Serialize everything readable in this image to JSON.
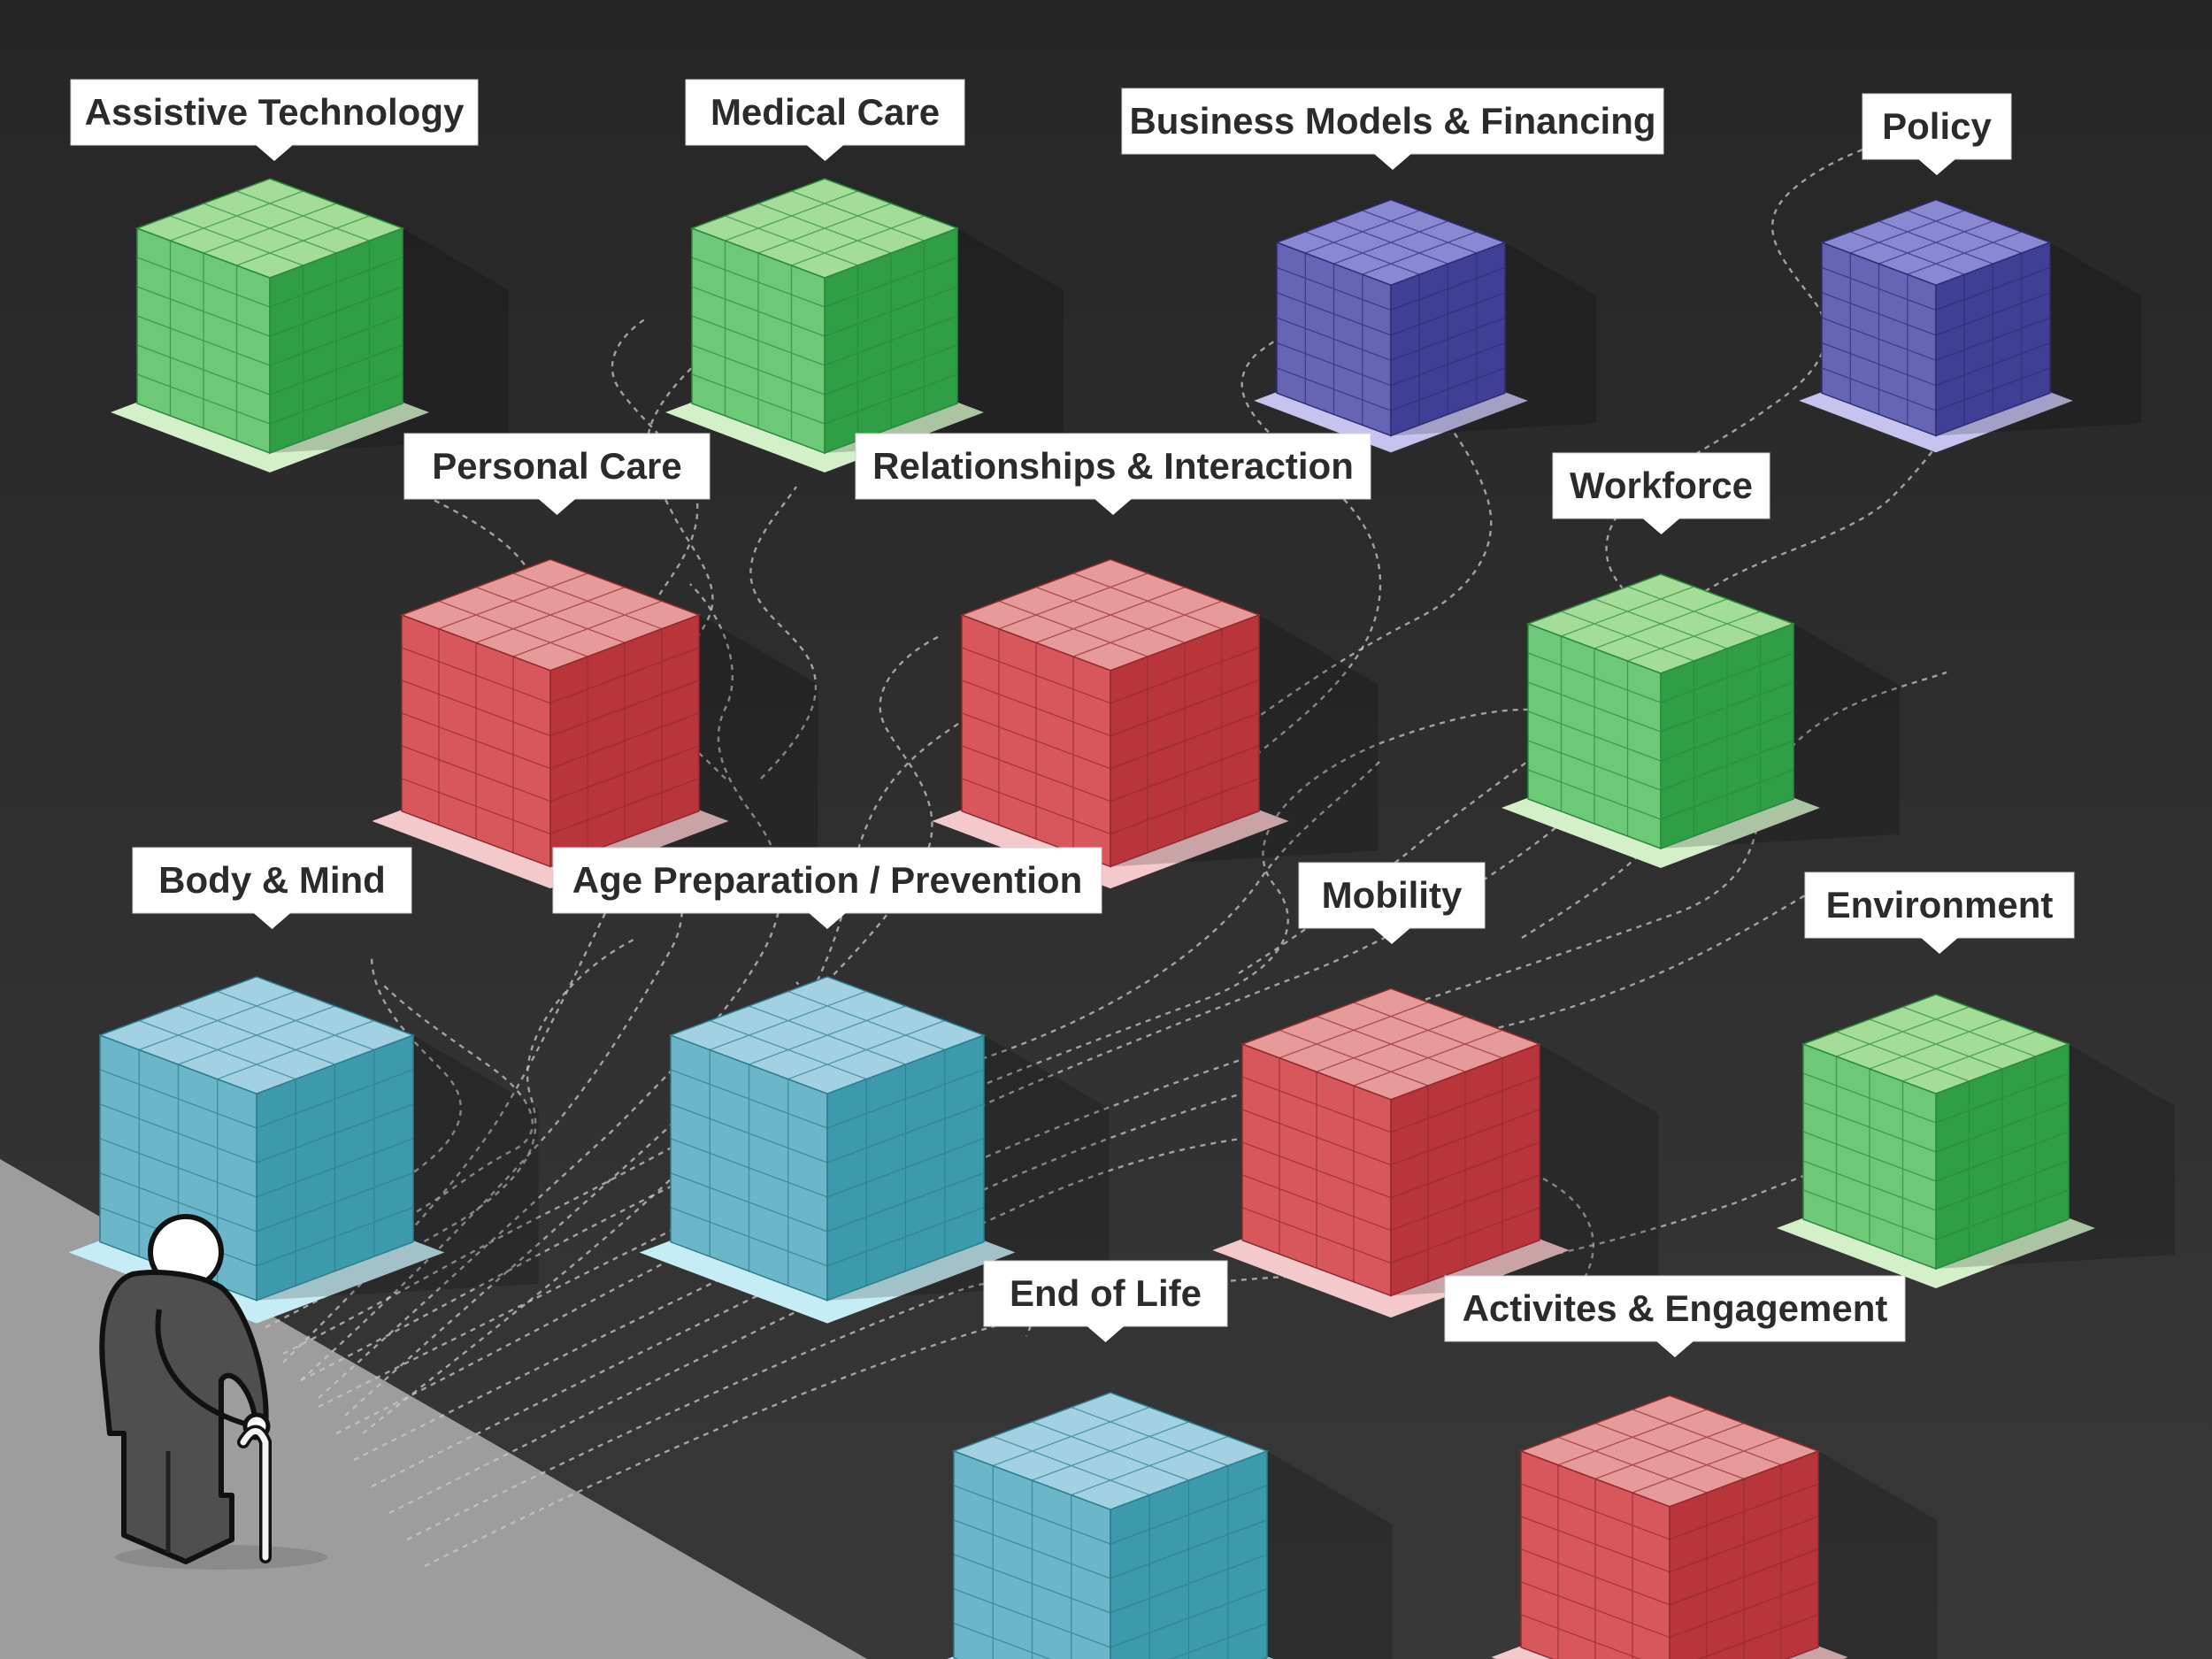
{
  "colors": {
    "background": "#2b2b2b",
    "floor": "#9d9d9d",
    "green": "#4cbb5a",
    "red": "#d24a4f",
    "purple": "#5656b0",
    "teal": "#4eaabc",
    "path": "#c8c8c8"
  },
  "person": {
    "icon": "elderly-person-with-cane-icon"
  },
  "tiles": [
    {
      "id": "assistive-technology",
      "label": "Assistive Technology",
      "color": "green"
    },
    {
      "id": "medical-care",
      "label": "Medical Care",
      "color": "green"
    },
    {
      "id": "business-models-financing",
      "label": "Business Models & Financing",
      "color": "purple"
    },
    {
      "id": "policy",
      "label": "Policy",
      "color": "purple"
    },
    {
      "id": "personal-care",
      "label": "Personal Care",
      "color": "red"
    },
    {
      "id": "relationships-interaction",
      "label": "Relationships & Interaction",
      "color": "red"
    },
    {
      "id": "workforce",
      "label": "Workforce",
      "color": "green"
    },
    {
      "id": "body-mind",
      "label": "Body & Mind",
      "color": "teal"
    },
    {
      "id": "age-preparation-prevention",
      "label": "Age Preparation / Prevention",
      "color": "teal"
    },
    {
      "id": "mobility",
      "label": "Mobility",
      "color": "red"
    },
    {
      "id": "environment",
      "label": "Environment",
      "color": "green"
    },
    {
      "id": "end-of-life",
      "label": "End of Life",
      "color": "teal"
    },
    {
      "id": "activites-engagement",
      "label": "Activites & Engagement",
      "color": "red"
    }
  ]
}
